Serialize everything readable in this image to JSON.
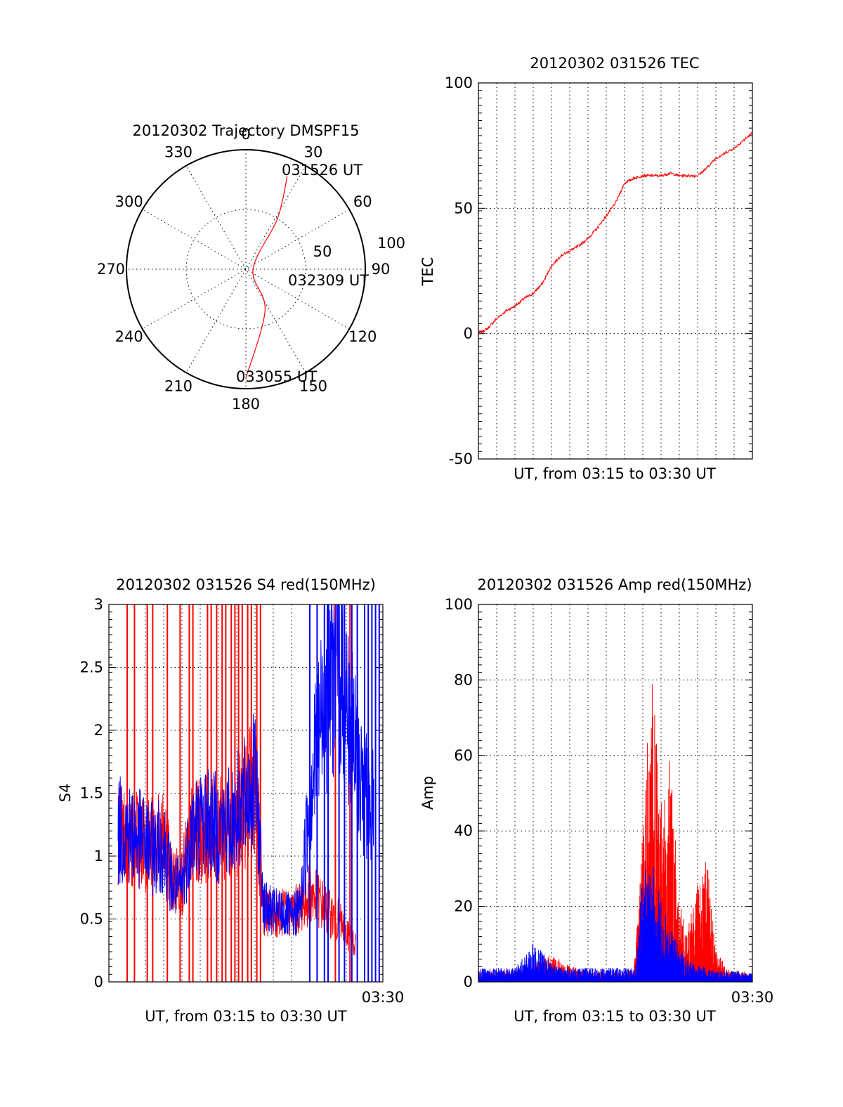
{
  "colors": {
    "red": "#ff0000",
    "blue": "#0000ff",
    "axis": "#000000"
  },
  "chart_data": [
    {
      "type": "polar",
      "title": "20120302 Trajectory DMSPF15",
      "azimuth_ticks": [
        "0",
        "30",
        "60",
        "90",
        "120",
        "150",
        "180",
        "210",
        "240",
        "270",
        "300",
        "330"
      ],
      "radial_ticks": [
        "50",
        "100"
      ],
      "rlim": [
        0,
        100
      ],
      "series": [
        {
          "name": "trajectory",
          "color": "red",
          "points": [
            [
              24,
              85
            ],
            [
              32,
              50
            ],
            [
              90,
              6
            ],
            [
              155,
              38
            ],
            [
              180,
              91
            ]
          ]
        }
      ],
      "annotations": [
        {
          "text": "031526 UT",
          "az": 24,
          "r": 85
        },
        {
          "text": "032309 UT",
          "az": 90,
          "r": 6
        },
        {
          "text": "033055 UT",
          "az": 180,
          "r": 91
        }
      ]
    },
    {
      "type": "line",
      "title": "20120302 031526 TEC",
      "xlabel": "UT, from 03:15 to 03:30 UT",
      "ylabel": "TEC",
      "ylim": [
        -50,
        100
      ],
      "xlim": [
        0,
        15
      ],
      "yticks": [
        "100",
        "50",
        "0",
        "-50"
      ],
      "grid": true,
      "series": [
        {
          "name": "TEC",
          "color": "red",
          "x": [
            0,
            0.5,
            1,
            1.5,
            2,
            2.5,
            3,
            3.5,
            4,
            4.5,
            5,
            5.5,
            6,
            6.5,
            7,
            7.5,
            8,
            8.5,
            9,
            9.5,
            10,
            10.5,
            11,
            11.5,
            12,
            12.5,
            13,
            13.5,
            14,
            14.5,
            15
          ],
          "y": [
            0,
            2,
            6,
            9,
            11,
            14,
            16,
            20,
            27,
            31,
            33,
            35,
            38,
            42,
            47,
            52,
            60,
            62,
            63,
            63,
            63,
            64,
            63,
            63,
            63,
            66,
            70,
            72,
            74,
            77,
            80
          ]
        }
      ]
    },
    {
      "type": "line",
      "title": "20120302 031526 S4 red(150MHz)",
      "xlabel": "UT, from 03:15 to 03:30 UT",
      "ylabel": "S4",
      "ylim": [
        0,
        3
      ],
      "xlim": [
        0,
        15
      ],
      "yticks": [
        "3",
        "2.5",
        "2",
        "1.5",
        "1",
        "0.5",
        "0"
      ],
      "xtick_end": "03:30",
      "grid": true,
      "series": [
        {
          "name": "red",
          "color": "red",
          "x": [
            0.5,
            1,
            1.5,
            2,
            2.5,
            3,
            3.5,
            4,
            4.5,
            5,
            5.5,
            6,
            6.5,
            7,
            7.5,
            8,
            8.5,
            9,
            9.5,
            10,
            10.5,
            11,
            11.5,
            12,
            12.5,
            13,
            13.5
          ],
          "y": [
            1.2,
            1.1,
            1.15,
            1.1,
            1.1,
            1.1,
            0.8,
            0.8,
            1.15,
            1.2,
            1.25,
            1.2,
            1.2,
            1.3,
            1.4,
            1.6,
            0.55,
            0.55,
            0.55,
            0.55,
            0.6,
            0.7,
            0.65,
            0.55,
            0.5,
            0.4,
            0.3
          ],
          "spikes_x": [
            1,
            1.4,
            2.1,
            2.4,
            3.2,
            3.9,
            4.4,
            4.6,
            5.4,
            5.6,
            5.9,
            6.2,
            6.4,
            6.7,
            6.9,
            7.1,
            7.3,
            7.6,
            7.8,
            8.1,
            8.3,
            12.4,
            13.2
          ]
        },
        {
          "name": "blue",
          "color": "blue",
          "x": [
            0.5,
            1,
            1.5,
            2,
            2.5,
            3,
            3.5,
            4,
            4.5,
            5,
            5.5,
            6,
            6.5,
            7,
            7.5,
            8,
            8.5,
            9,
            9.5,
            10,
            10.5,
            11,
            11.5,
            12,
            12.5,
            13,
            13.5,
            14,
            14.5
          ],
          "y": [
            1.2,
            1.2,
            1.15,
            1.1,
            1.05,
            1.1,
            0.75,
            0.75,
            1.2,
            1.25,
            1.3,
            1.2,
            1.25,
            1.35,
            1.45,
            1.6,
            0.6,
            0.55,
            0.55,
            0.5,
            0.6,
            1.5,
            2.0,
            2.4,
            2.6,
            2.2,
            1.8,
            1.5,
            1.4
          ],
          "spikes_x": [
            11.0,
            11.4,
            11.8,
            12.0,
            12.6,
            12.9,
            13.3,
            13.6,
            14.0,
            14.2,
            14.4,
            14.6,
            14.8
          ]
        }
      ]
    },
    {
      "type": "line",
      "title": "20120302 031526 Amp red(150MHz)",
      "xlabel": "UT, from 03:15 to 03:30 UT",
      "ylabel": "Amp",
      "ylim": [
        0,
        100
      ],
      "xlim": [
        0,
        15
      ],
      "yticks": [
        "100",
        "80",
        "60",
        "40",
        "20",
        "0"
      ],
      "xtick_end": "03:30",
      "grid": true,
      "series": [
        {
          "name": "red",
          "color": "red",
          "x": [
            0,
            1,
            2,
            3,
            4,
            5,
            6,
            7,
            8,
            8.5,
            9,
            9.5,
            10,
            10.5,
            11,
            11.5,
            12,
            12.5,
            13,
            13.5,
            14,
            14.5,
            15
          ],
          "y": [
            2,
            2,
            2,
            3,
            5,
            3,
            2,
            2,
            2,
            2,
            28,
            60,
            35,
            40,
            15,
            10,
            18,
            22,
            6,
            3,
            2,
            2,
            1
          ]
        },
        {
          "name": "blue",
          "color": "blue",
          "x": [
            0,
            1,
            2,
            2.6,
            3,
            3.5,
            4,
            5,
            6,
            7,
            8,
            8.6,
            9,
            9.5,
            10,
            10.5,
            11,
            11.5,
            12,
            12.5,
            13,
            14,
            15
          ],
          "y": [
            2.5,
            2.5,
            2.5,
            5,
            7,
            6,
            3,
            2.5,
            2.5,
            2.5,
            2.5,
            2.5,
            20,
            22,
            15,
            10,
            6,
            4,
            3,
            2.5,
            2,
            2,
            1.5
          ]
        }
      ]
    }
  ]
}
